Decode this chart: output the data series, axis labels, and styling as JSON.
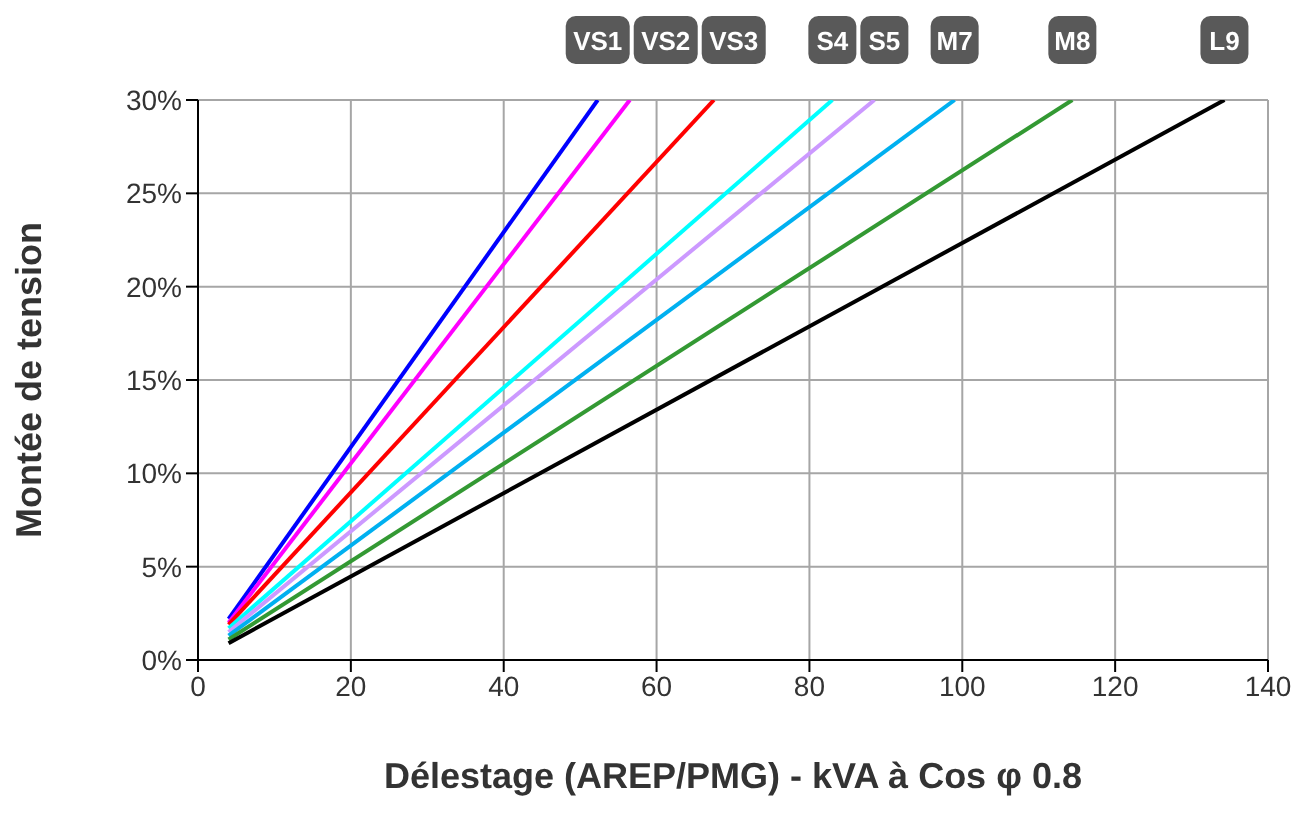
{
  "chart_data": {
    "type": "line",
    "xlabel": "Délestage (AREP/PMG) - kVA à Cos φ 0.8",
    "ylabel": "Montée de tension",
    "series": [
      {
        "name": "VS1",
        "color": "#0000ff",
        "x": [
          4,
          52.3
        ],
        "values": [
          2.2,
          30
        ]
      },
      {
        "name": "VS2",
        "color": "#ff00ff",
        "x": [
          4,
          56.5
        ],
        "values": [
          2.0,
          30
        ]
      },
      {
        "name": "VS3",
        "color": "#ff0000",
        "x": [
          4,
          67.5
        ],
        "values": [
          1.9,
          30
        ]
      },
      {
        "name": "S4",
        "color": "#00ffff",
        "x": [
          4,
          83
        ],
        "values": [
          1.7,
          30
        ]
      },
      {
        "name": "S5",
        "color": "#cc99ff",
        "x": [
          4,
          88.5
        ],
        "values": [
          1.5,
          30
        ]
      },
      {
        "name": "M7",
        "color": "#00b0f0",
        "x": [
          4,
          99
        ],
        "values": [
          1.3,
          30
        ]
      },
      {
        "name": "M8",
        "color": "#339933",
        "x": [
          4,
          114.4
        ],
        "values": [
          1.1,
          30
        ]
      },
      {
        "name": "L9",
        "color": "#000000",
        "x": [
          4,
          134.3
        ],
        "values": [
          0.9,
          30
        ]
      }
    ],
    "xlim": [
      0,
      140
    ],
    "xticks": [
      0,
      20,
      40,
      60,
      80,
      100,
      120,
      140
    ],
    "ylim": [
      0,
      30
    ],
    "yticks": [
      {
        "value": 0,
        "label": "0%"
      },
      {
        "value": 5,
        "label": "5%"
      },
      {
        "value": 10,
        "label": "10%"
      },
      {
        "value": 15,
        "label": "15%"
      },
      {
        "value": 20,
        "label": "20%"
      },
      {
        "value": 25,
        "label": "25%"
      },
      {
        "value": 30,
        "label": "30%"
      }
    ],
    "grid": true,
    "legend": false,
    "marker": "none",
    "line_style": "solid"
  }
}
